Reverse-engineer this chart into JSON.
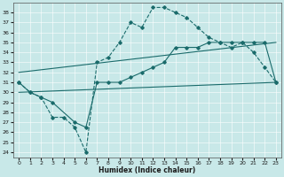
{
  "xlabel": "Humidex (Indice chaleur)",
  "xlim": [
    -0.5,
    23.5
  ],
  "ylim": [
    23.5,
    39.0
  ],
  "yticks": [
    24,
    25,
    26,
    27,
    28,
    29,
    30,
    31,
    32,
    33,
    34,
    35,
    36,
    37,
    38
  ],
  "xticks": [
    0,
    1,
    2,
    3,
    4,
    5,
    6,
    7,
    8,
    9,
    10,
    11,
    12,
    13,
    14,
    15,
    16,
    17,
    18,
    19,
    20,
    21,
    22,
    23
  ],
  "bg_color": "#c8e8e8",
  "line_color": "#1a6b6b",
  "line1_x": [
    0,
    1,
    2,
    3,
    4,
    5,
    6,
    7,
    8,
    9,
    10,
    11,
    12,
    13,
    14,
    15,
    16,
    17,
    18,
    19,
    20,
    21,
    22,
    23
  ],
  "line1_y": [
    31.0,
    30.0,
    29.5,
    27.5,
    27.5,
    26.5,
    24.0,
    33.0,
    33.5,
    35.0,
    37.0,
    36.5,
    38.5,
    38.5,
    38.0,
    37.5,
    36.5,
    35.5,
    35.0,
    34.5,
    35.0,
    34.0,
    32.5,
    31.0
  ],
  "line2_x": [
    0,
    1,
    2,
    3,
    5,
    6,
    7,
    8,
    9,
    10,
    11,
    12,
    13,
    14,
    15,
    16,
    17,
    18,
    19,
    20,
    21,
    22,
    23
  ],
  "line2_y": [
    31.0,
    30.0,
    29.5,
    29.0,
    27.0,
    26.5,
    31.0,
    31.0,
    31.0,
    31.5,
    32.0,
    32.5,
    33.0,
    34.5,
    34.5,
    34.5,
    35.0,
    35.0,
    35.0,
    35.0,
    35.0,
    35.0,
    31.0
  ],
  "line3_x": [
    0,
    23
  ],
  "line3_y": [
    32.0,
    35.0
  ],
  "line4_x": [
    0,
    23
  ],
  "line4_y": [
    30.0,
    31.0
  ]
}
